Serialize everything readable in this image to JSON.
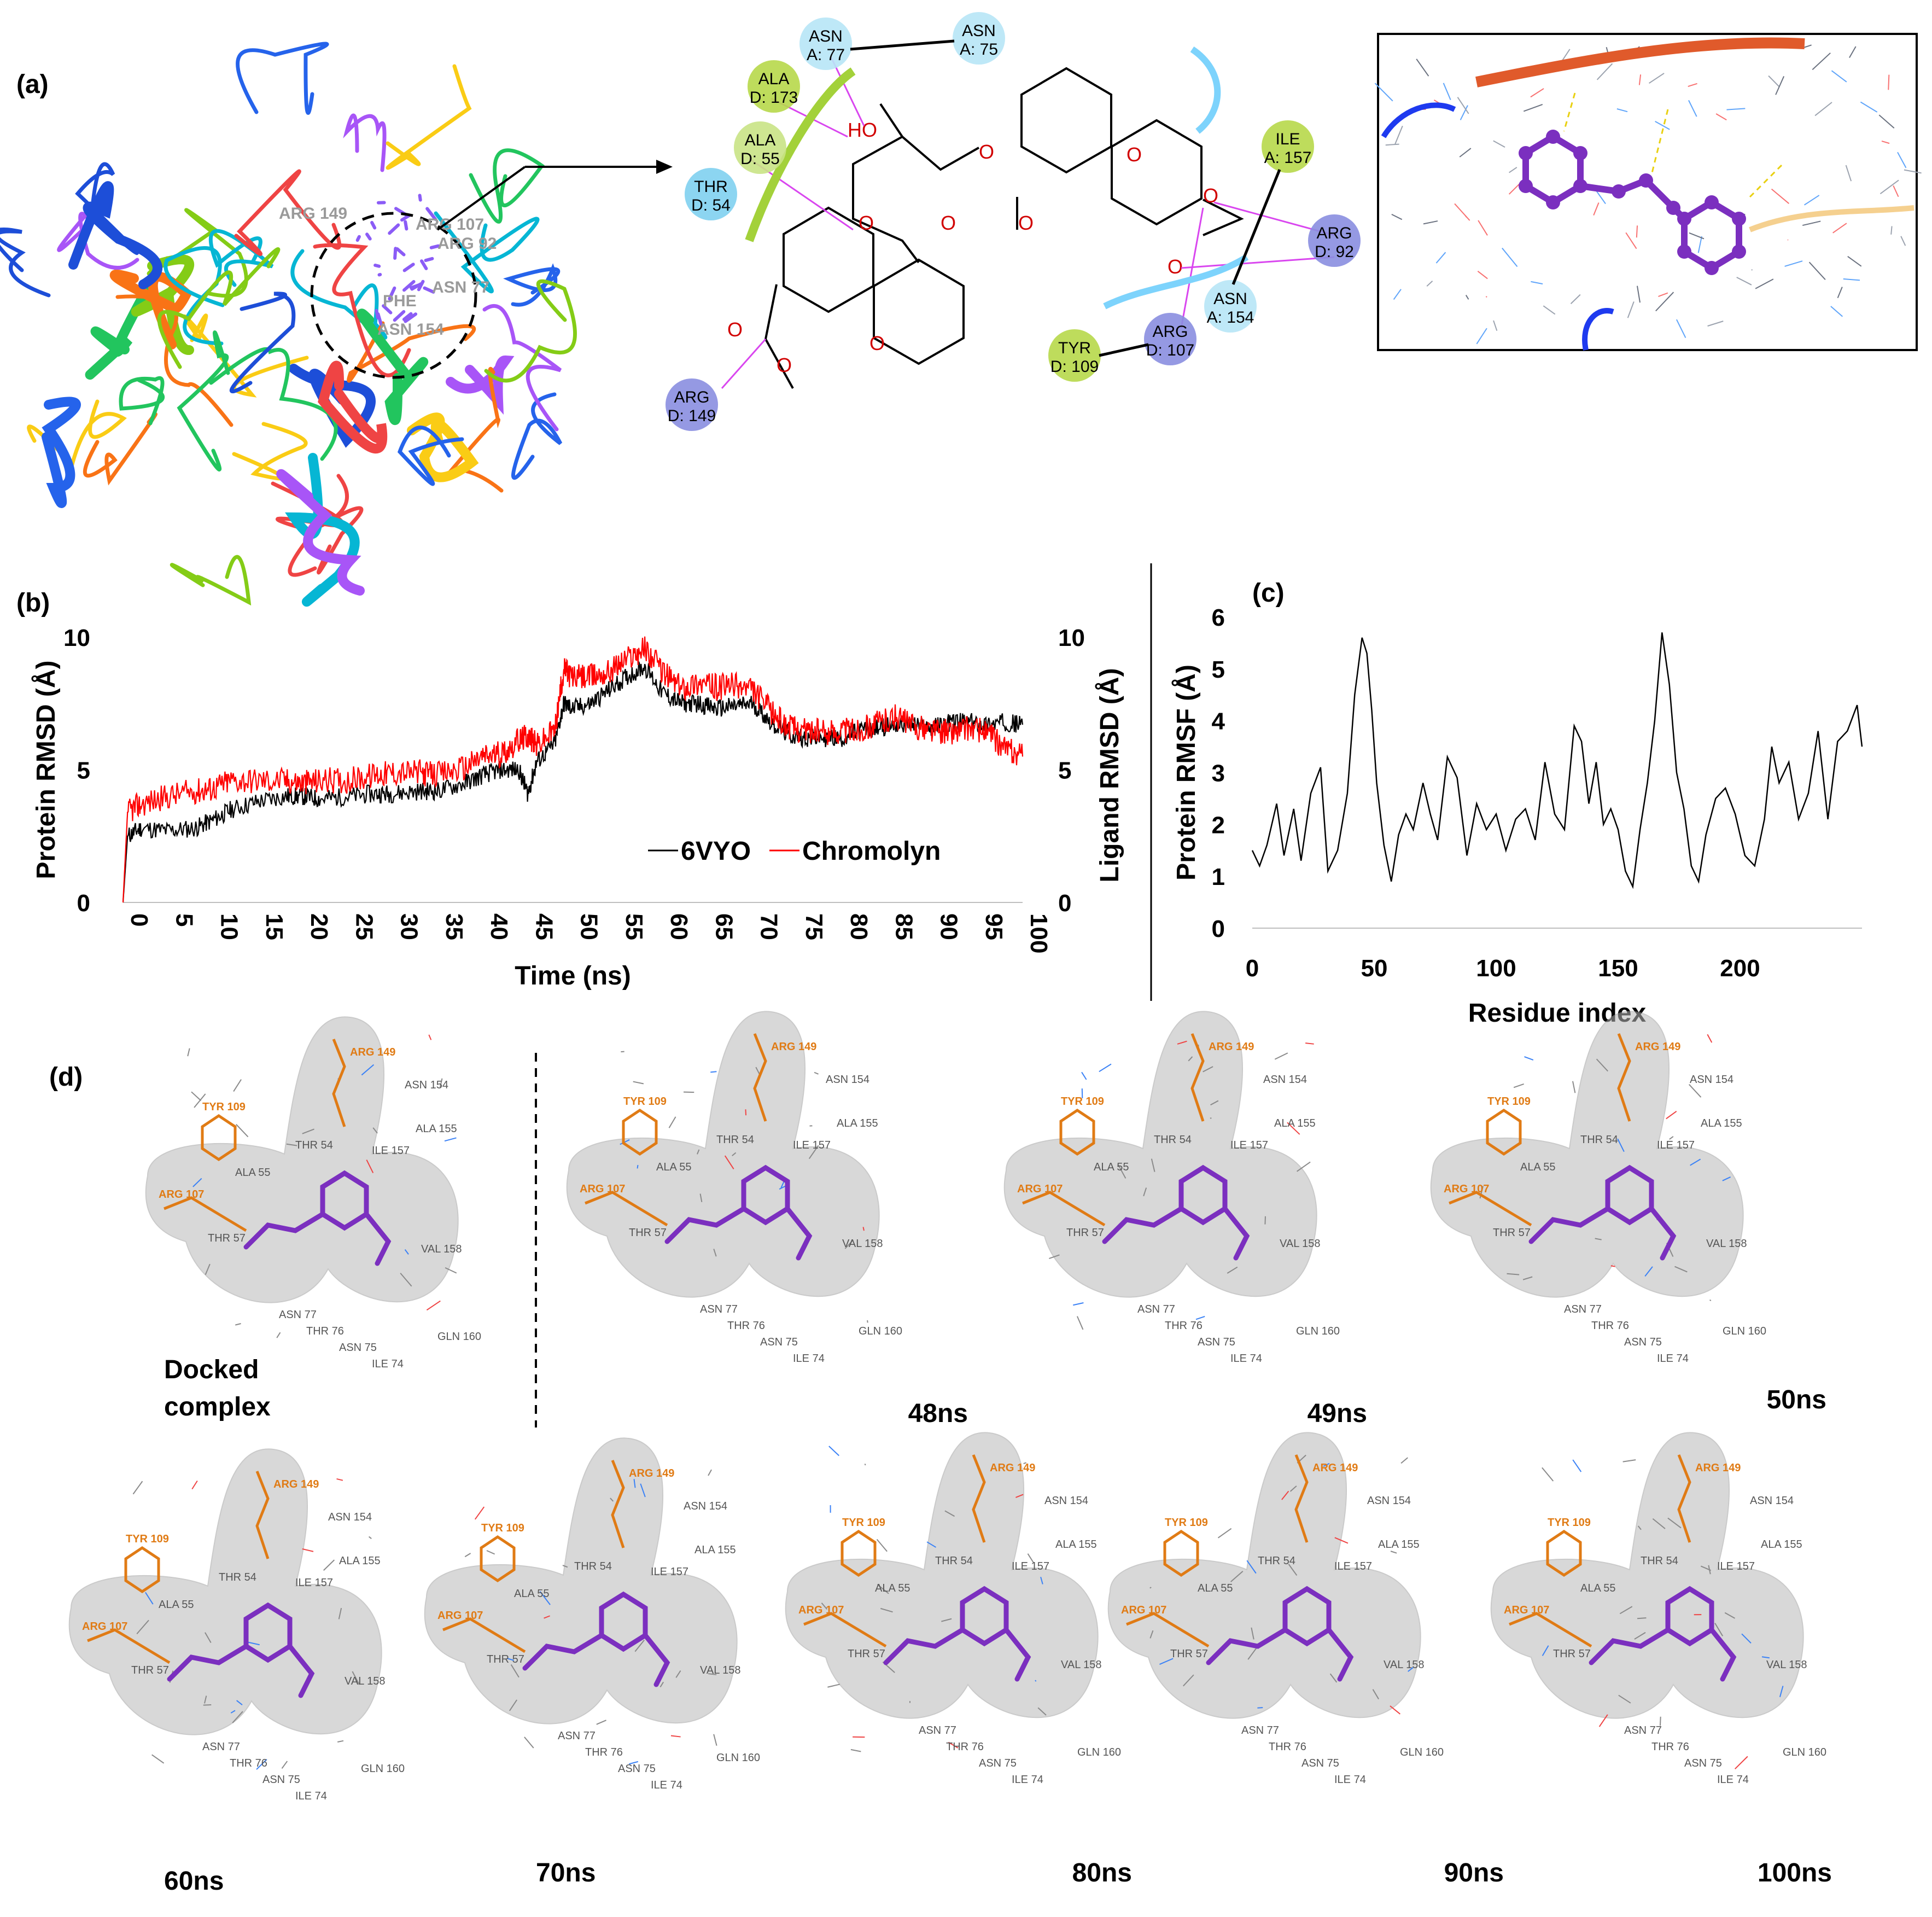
{
  "panels": {
    "a": "(a)",
    "b": "(b)",
    "c": "(c)",
    "d": "(d)"
  },
  "structure_labels": [
    "ARG 149",
    "ARG 107",
    "ARG 92",
    "ASN 77",
    "PHE",
    "ASN 154"
  ],
  "interaction_map": {
    "residues": [
      {
        "name": "ASN",
        "chain": "A: 77",
        "color": "#b7e6f6"
      },
      {
        "name": "ASN",
        "chain": "A: 75",
        "color": "#b7e6f6"
      },
      {
        "name": "ALA",
        "chain": "D: 173",
        "color": "#b7d84a"
      },
      {
        "name": "ALA",
        "chain": "D: 55",
        "color": "#c9e385"
      },
      {
        "name": "THR",
        "chain": "D: 54",
        "color": "#7fd0ef"
      },
      {
        "name": "ILE",
        "chain": "A: 157",
        "color": "#b7d84a"
      },
      {
        "name": "ARG",
        "chain": "D: 92",
        "color": "#8a8ee0"
      },
      {
        "name": "ASN",
        "chain": "A: 154",
        "color": "#b7e6f6"
      },
      {
        "name": "ARG",
        "chain": "D: 107",
        "color": "#8a8ee0"
      },
      {
        "name": "TYR",
        "chain": "D: 109",
        "color": "#b7d84a"
      },
      {
        "name": "ARG",
        "chain": "D: 149",
        "color": "#8a8ee0"
      }
    ],
    "atoms": [
      "HO",
      "O",
      "O",
      "O",
      "O",
      "O",
      "O",
      "O",
      "O",
      "O",
      "O"
    ]
  },
  "colors": {
    "protein": "#000000",
    "ligand": "#ff0000",
    "ligand_mol": "#7b2fbf",
    "accent_orange": "#e07b15"
  },
  "chart_data": [
    {
      "type": "line",
      "id": "rmsd",
      "xlabel": "Time (ns)",
      "ylabel": "Protein RMSD (Å)",
      "y2label": "Ligand RMSD (Å)",
      "xlim": [
        0,
        100
      ],
      "ylim": [
        0,
        10
      ],
      "xticks": [
        0,
        5,
        10,
        15,
        20,
        25,
        30,
        35,
        40,
        45,
        50,
        55,
        60,
        65,
        70,
        75,
        80,
        85,
        90,
        95,
        100
      ],
      "yticks": [
        0,
        5,
        10
      ],
      "legend_position": "bottom-right",
      "series": [
        {
          "name": "6VYO",
          "color": "#000000",
          "x": [
            0,
            0.5,
            2,
            5,
            8,
            10,
            12,
            15,
            18,
            20,
            22,
            25,
            28,
            30,
            33,
            35,
            38,
            40,
            42,
            44,
            45,
            46,
            48,
            49,
            50,
            52,
            54,
            56,
            58,
            60,
            62,
            64,
            66,
            68,
            70,
            72,
            74,
            76,
            78,
            80,
            82,
            84,
            86,
            88,
            90,
            92,
            94,
            96,
            98,
            100
          ],
          "y": [
            0.0,
            2.5,
            2.8,
            2.7,
            2.8,
            3.1,
            3.5,
            3.8,
            4.0,
            4.0,
            3.9,
            4.0,
            4.1,
            4.1,
            4.2,
            4.2,
            4.5,
            4.8,
            5.0,
            5.0,
            4.1,
            5.3,
            6.0,
            7.5,
            7.3,
            7.5,
            8.0,
            8.5,
            8.9,
            7.9,
            7.5,
            7.5,
            7.3,
            7.4,
            7.5,
            6.8,
            6.3,
            6.2,
            6.2,
            6.2,
            6.5,
            6.6,
            6.7,
            6.7,
            6.6,
            6.8,
            6.8,
            6.7,
            6.8,
            6.7
          ]
        },
        {
          "name": "Chromolyn",
          "color": "#ff0000",
          "x": [
            0,
            0.5,
            2,
            5,
            8,
            10,
            12,
            15,
            18,
            20,
            22,
            25,
            28,
            30,
            33,
            35,
            38,
            40,
            42,
            44,
            45,
            46,
            48,
            49,
            50,
            52,
            54,
            56,
            58,
            60,
            62,
            64,
            66,
            68,
            70,
            72,
            74,
            76,
            78,
            80,
            82,
            84,
            86,
            88,
            90,
            92,
            94,
            96,
            98,
            100
          ],
          "y": [
            0.0,
            3.4,
            3.7,
            4.0,
            4.2,
            4.3,
            4.6,
            4.6,
            4.6,
            4.5,
            4.6,
            4.6,
            4.8,
            4.9,
            4.9,
            4.8,
            5.1,
            5.5,
            5.6,
            6.1,
            6.3,
            5.9,
            6.5,
            8.8,
            8.5,
            8.5,
            8.7,
            9.2,
            9.6,
            8.7,
            8.1,
            8.3,
            8.1,
            8.2,
            8.0,
            7.2,
            6.6,
            6.5,
            6.4,
            6.5,
            6.5,
            6.8,
            7.0,
            6.6,
            6.5,
            6.4,
            6.6,
            6.4,
            5.8,
            5.5
          ]
        }
      ]
    },
    {
      "type": "line",
      "id": "rmsf",
      "xlabel": "Residue index",
      "ylabel": "Protein RMSF (Å)",
      "xlim": [
        0,
        250
      ],
      "ylim": [
        0,
        6
      ],
      "xticks": [
        0,
        50,
        100,
        150,
        200
      ],
      "yticks": [
        0,
        1,
        2,
        3,
        4,
        5,
        6
      ],
      "series": [
        {
          "name": "",
          "color": "#000000",
          "x": [
            0,
            3,
            6,
            10,
            13,
            17,
            20,
            24,
            28,
            31,
            35,
            39,
            42,
            45,
            47,
            49,
            51,
            54,
            57,
            60,
            63,
            66,
            70,
            73,
            76,
            80,
            84,
            88,
            92,
            96,
            100,
            104,
            108,
            112,
            116,
            120,
            124,
            128,
            132,
            135,
            138,
            141,
            144,
            147,
            150,
            153,
            156,
            159,
            162,
            165,
            168,
            171,
            174,
            177,
            180,
            183,
            186,
            190,
            194,
            198,
            202,
            206,
            210,
            213,
            216,
            220,
            224,
            228,
            232,
            236,
            240,
            244,
            248,
            250
          ],
          "y": [
            1.5,
            1.2,
            1.6,
            2.4,
            1.4,
            2.3,
            1.3,
            2.6,
            3.1,
            1.1,
            1.5,
            2.6,
            4.5,
            5.6,
            5.3,
            4.2,
            2.8,
            1.6,
            0.9,
            1.8,
            2.2,
            1.9,
            2.8,
            2.2,
            1.7,
            3.3,
            2.9,
            1.4,
            2.4,
            1.9,
            2.2,
            1.5,
            2.1,
            2.3,
            1.7,
            3.2,
            2.2,
            1.9,
            3.9,
            3.6,
            2.4,
            3.2,
            2.0,
            2.3,
            1.9,
            1.1,
            0.8,
            1.9,
            2.8,
            4.0,
            5.7,
            4.7,
            3.0,
            2.3,
            1.2,
            0.9,
            1.8,
            2.5,
            2.7,
            2.2,
            1.4,
            1.2,
            2.1,
            3.5,
            2.8,
            3.2,
            2.1,
            2.6,
            3.8,
            2.1,
            3.6,
            3.8,
            4.3,
            3.5
          ]
        }
      ]
    }
  ],
  "snapshots": [
    {
      "label": "Docked\ncomplex",
      "l1": "Docked",
      "l2": "complex"
    },
    {
      "label": "48ns"
    },
    {
      "label": "49ns"
    },
    {
      "label": "50ns"
    },
    {
      "label": "60ns"
    },
    {
      "label": "70ns"
    },
    {
      "label": "80ns"
    },
    {
      "label": "90ns"
    },
    {
      "label": "100ns"
    }
  ],
  "snapshot_residues": {
    "orange": [
      "ARG 149",
      "TYR 109",
      "ARG 107"
    ],
    "grey": [
      "ASN 154",
      "ALA 155",
      "ILE 157",
      "VAL 158",
      "THR 54",
      "ALA 55",
      "THR 57",
      "ASN 77",
      "ASN 75",
      "THR 76",
      "ILE 74",
      "GLN 160"
    ]
  }
}
